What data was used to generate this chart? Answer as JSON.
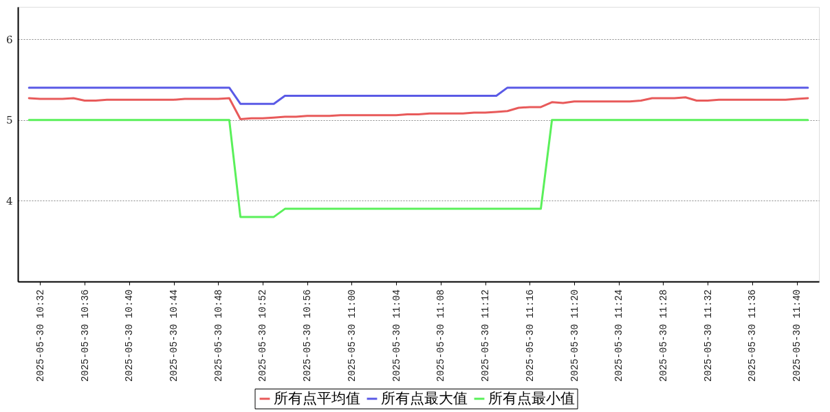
{
  "chart_data": {
    "type": "line",
    "x": [
      "2025-05-30T10:31",
      "2025-05-30T10:32",
      "2025-05-30T10:33",
      "2025-05-30T10:34",
      "2025-05-30T10:35",
      "2025-05-30T10:36",
      "2025-05-30T10:37",
      "2025-05-30T10:38",
      "2025-05-30T10:39",
      "2025-05-30T10:40",
      "2025-05-30T10:41",
      "2025-05-30T10:42",
      "2025-05-30T10:43",
      "2025-05-30T10:44",
      "2025-05-30T10:45",
      "2025-05-30T10:46",
      "2025-05-30T10:47",
      "2025-05-30T10:48",
      "2025-05-30T10:49",
      "2025-05-30T10:50",
      "2025-05-30T10:51",
      "2025-05-30T10:52",
      "2025-05-30T10:53",
      "2025-05-30T10:54",
      "2025-05-30T10:55",
      "2025-05-30T10:56",
      "2025-05-30T10:57",
      "2025-05-30T10:58",
      "2025-05-30T10:59",
      "2025-05-30T11:00",
      "2025-05-30T11:01",
      "2025-05-30T11:02",
      "2025-05-30T11:03",
      "2025-05-30T11:04",
      "2025-05-30T11:05",
      "2025-05-30T11:06",
      "2025-05-30T11:07",
      "2025-05-30T11:08",
      "2025-05-30T11:09",
      "2025-05-30T11:10",
      "2025-05-30T11:11",
      "2025-05-30T11:12",
      "2025-05-30T11:13",
      "2025-05-30T11:14",
      "2025-05-30T11:15",
      "2025-05-30T11:16",
      "2025-05-30T11:17",
      "2025-05-30T11:18",
      "2025-05-30T11:19",
      "2025-05-30T11:20",
      "2025-05-30T11:21",
      "2025-05-30T11:22",
      "2025-05-30T11:23",
      "2025-05-30T11:24",
      "2025-05-30T11:25",
      "2025-05-30T11:26",
      "2025-05-30T11:27",
      "2025-05-30T11:28",
      "2025-05-30T11:29",
      "2025-05-30T11:30",
      "2025-05-30T11:31",
      "2025-05-30T11:32",
      "2025-05-30T11:33",
      "2025-05-30T11:34",
      "2025-05-30T11:35",
      "2025-05-30T11:36",
      "2025-05-30T11:37",
      "2025-05-30T11:38",
      "2025-05-30T11:39",
      "2025-05-30T11:40",
      "2025-05-30T11:41"
    ],
    "series": [
      {
        "name": "所有点平均值",
        "color": "#e85a5a",
        "values": [
          5.27,
          5.26,
          5.26,
          5.26,
          5.27,
          5.24,
          5.24,
          5.25,
          5.25,
          5.25,
          5.25,
          5.25,
          5.25,
          5.25,
          5.26,
          5.26,
          5.26,
          5.26,
          5.27,
          5.01,
          5.02,
          5.02,
          5.03,
          5.04,
          5.04,
          5.05,
          5.05,
          5.05,
          5.06,
          5.06,
          5.06,
          5.06,
          5.06,
          5.06,
          5.07,
          5.07,
          5.08,
          5.08,
          5.08,
          5.08,
          5.09,
          5.09,
          5.1,
          5.11,
          5.15,
          5.16,
          5.16,
          5.22,
          5.21,
          5.23,
          5.23,
          5.23,
          5.23,
          5.23,
          5.23,
          5.24,
          5.27,
          5.27,
          5.27,
          5.28,
          5.24,
          5.24,
          5.25,
          5.25,
          5.25,
          5.25,
          5.25,
          5.25,
          5.25,
          5.26,
          5.27
        ]
      },
      {
        "name": "所有点最大值",
        "color": "#5a5ae6",
        "values": [
          5.4,
          5.4,
          5.4,
          5.4,
          5.4,
          5.4,
          5.4,
          5.4,
          5.4,
          5.4,
          5.4,
          5.4,
          5.4,
          5.4,
          5.4,
          5.4,
          5.4,
          5.4,
          5.4,
          5.2,
          5.2,
          5.2,
          5.2,
          5.3,
          5.3,
          5.3,
          5.3,
          5.3,
          5.3,
          5.3,
          5.3,
          5.3,
          5.3,
          5.3,
          5.3,
          5.3,
          5.3,
          5.3,
          5.3,
          5.3,
          5.3,
          5.3,
          5.3,
          5.4,
          5.4,
          5.4,
          5.4,
          5.4,
          5.4,
          5.4,
          5.4,
          5.4,
          5.4,
          5.4,
          5.4,
          5.4,
          5.4,
          5.4,
          5.4,
          5.4,
          5.4,
          5.4,
          5.4,
          5.4,
          5.4,
          5.4,
          5.4,
          5.4,
          5.4,
          5.4,
          5.4
        ]
      },
      {
        "name": "所有点最小值",
        "color": "#5af05a",
        "values": [
          5,
          5,
          5,
          5,
          5,
          5,
          5,
          5,
          5,
          5,
          5,
          5,
          5,
          5,
          5,
          5,
          5,
          5,
          5,
          3.8,
          3.8,
          3.8,
          3.8,
          3.9,
          3.9,
          3.9,
          3.9,
          3.9,
          3.9,
          3.9,
          3.9,
          3.9,
          3.9,
          3.9,
          3.9,
          3.9,
          3.9,
          3.9,
          3.9,
          3.9,
          3.9,
          3.9,
          3.9,
          3.9,
          3.9,
          3.9,
          3.9,
          5,
          5,
          5,
          5,
          5,
          5,
          5,
          5,
          5,
          5,
          5,
          5,
          5,
          5,
          5,
          5,
          5,
          5,
          5,
          5,
          5,
          5,
          5,
          5
        ]
      }
    ],
    "xlim": [
      "2025-05-30T10:30",
      "2025-05-30T11:42"
    ],
    "xticks": [
      {
        "value": "2025-05-30T10:32",
        "label": "2025-05-30 10:32"
      },
      {
        "value": "2025-05-30T10:36",
        "label": "2025-05-30 10:36"
      },
      {
        "value": "2025-05-30T10:40",
        "label": "2025-05-30 10:40"
      },
      {
        "value": "2025-05-30T10:44",
        "label": "2025-05-30 10:44"
      },
      {
        "value": "2025-05-30T10:48",
        "label": "2025-05-30 10:48"
      },
      {
        "value": "2025-05-30T10:52",
        "label": "2025-05-30 10:52"
      },
      {
        "value": "2025-05-30T10:56",
        "label": "2025-05-30 10:56"
      },
      {
        "value": "2025-05-30T11:00",
        "label": "2025-05-30 11:00"
      },
      {
        "value": "2025-05-30T11:04",
        "label": "2025-05-30 11:04"
      },
      {
        "value": "2025-05-30T11:08",
        "label": "2025-05-30 11:08"
      },
      {
        "value": "2025-05-30T11:12",
        "label": "2025-05-30 11:12"
      },
      {
        "value": "2025-05-30T11:16",
        "label": "2025-05-30 11:16"
      },
      {
        "value": "2025-05-30T11:20",
        "label": "2025-05-30 11:20"
      },
      {
        "value": "2025-05-30T11:24",
        "label": "2025-05-30 11:24"
      },
      {
        "value": "2025-05-30T11:28",
        "label": "2025-05-30 11:28"
      },
      {
        "value": "2025-05-30T11:32",
        "label": "2025-05-30 11:32"
      },
      {
        "value": "2025-05-30T11:36",
        "label": "2025-05-30 11:36"
      },
      {
        "value": "2025-05-30T11:40",
        "label": "2025-05-30 11:40"
      }
    ],
    "ylim": [
      3,
      6.4
    ],
    "yticks": [
      4,
      5,
      6
    ],
    "grid": "y",
    "legend": "bottom",
    "line_style": "solid"
  }
}
